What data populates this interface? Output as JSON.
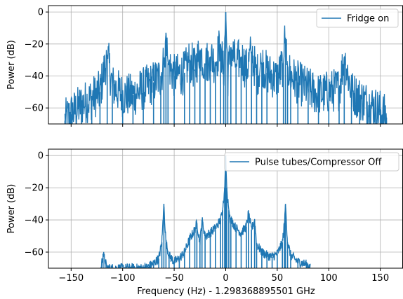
{
  "colors": {
    "line": "#1f77b4",
    "grid": "#b0b0b0",
    "axis": "#000000",
    "legend_border": "#cccccc"
  },
  "shared_xlabel": "Frequency (Hz) - 1.298368895501 GHz",
  "chart_data": [
    {
      "type": "line",
      "title": "",
      "xlabel": "",
      "ylabel": "Power (dB)",
      "xlim": [
        -172,
        172
      ],
      "ylim": [
        -70,
        4
      ],
      "xticks": [
        -150,
        -100,
        -50,
        0,
        50,
        100,
        150
      ],
      "yticks": [
        0,
        -20,
        -40,
        -60
      ],
      "ytick_labels": [
        "0",
        "−20",
        "−40",
        "−60"
      ],
      "grid": true,
      "legend_position": "top-right",
      "series": [
        {
          "name": "Fridge on",
          "x": [
            -156,
            -150,
            -140,
            -130,
            -122,
            -115,
            -110,
            -100,
            -90,
            -80,
            -70,
            -63,
            -60,
            -58,
            -56,
            -50,
            -40,
            -35,
            -30,
            -25,
            -20,
            -15,
            -10,
            -5,
            -2,
            0,
            2,
            5,
            10,
            15,
            20,
            25,
            30,
            35,
            40,
            50,
            56,
            58,
            60,
            63,
            70,
            80,
            90,
            100,
            110,
            115,
            122,
            130,
            140,
            150,
            156
          ],
          "y": [
            -68,
            -64,
            -58,
            -54,
            -50,
            -27,
            -46,
            -52,
            -52,
            -48,
            -44,
            -40,
            -32,
            -13,
            -32,
            -40,
            -38,
            -30,
            -36,
            -24,
            -33,
            -28,
            -32,
            -20,
            -40,
            0,
            -40,
            -22,
            -33,
            -28,
            -36,
            -25,
            -40,
            -32,
            -38,
            -42,
            -32,
            -16,
            -34,
            -40,
            -44,
            -48,
            -52,
            -50,
            -48,
            -28,
            -50,
            -54,
            -58,
            -62,
            -66
          ]
        }
      ]
    },
    {
      "type": "line",
      "title": "",
      "xlabel": "Frequency (Hz) - 1.298368895501 GHz",
      "ylabel": "Power (dB)",
      "xlim": [
        -172,
        172
      ],
      "ylim": [
        -70,
        4
      ],
      "xticks": [
        -150,
        -100,
        -50,
        0,
        50,
        100,
        150
      ],
      "xtick_labels": [
        "−150",
        "−100",
        "−50",
        "0",
        "50",
        "100",
        "150"
      ],
      "yticks": [
        0,
        -20,
        -40,
        -60
      ],
      "ytick_labels": [
        "0",
        "−20",
        "−40",
        "−60"
      ],
      "grid": true,
      "legend_position": "top-right",
      "series": [
        {
          "name": "Pulse tubes/Compressor Off",
          "x": [
            -121,
            -119,
            -117,
            -115,
            -80,
            -75,
            -70,
            -65,
            -62,
            -60,
            -58,
            -55,
            -50,
            -45,
            -40,
            -35,
            -30,
            -28,
            -25,
            -23,
            -20,
            -15,
            -10,
            -5,
            -3,
            -1,
            0,
            1,
            3,
            5,
            10,
            15,
            20,
            22,
            25,
            28,
            30,
            35,
            40,
            45,
            50,
            55,
            57,
            58,
            60,
            63,
            70,
            80,
            82
          ],
          "y": [
            -70,
            -61,
            -66,
            -70,
            -70,
            -69,
            -67,
            -64,
            -54,
            -30,
            -54,
            -62,
            -66,
            -64,
            -60,
            -52,
            -46,
            -42,
            -54,
            -40,
            -50,
            -48,
            -45,
            -40,
            -34,
            -20,
            0,
            -20,
            -34,
            -40,
            -45,
            -48,
            -44,
            -36,
            -46,
            -40,
            -55,
            -60,
            -62,
            -63,
            -61,
            -54,
            -42,
            -30,
            -54,
            -62,
            -66,
            -68,
            -70
          ]
        }
      ]
    }
  ]
}
